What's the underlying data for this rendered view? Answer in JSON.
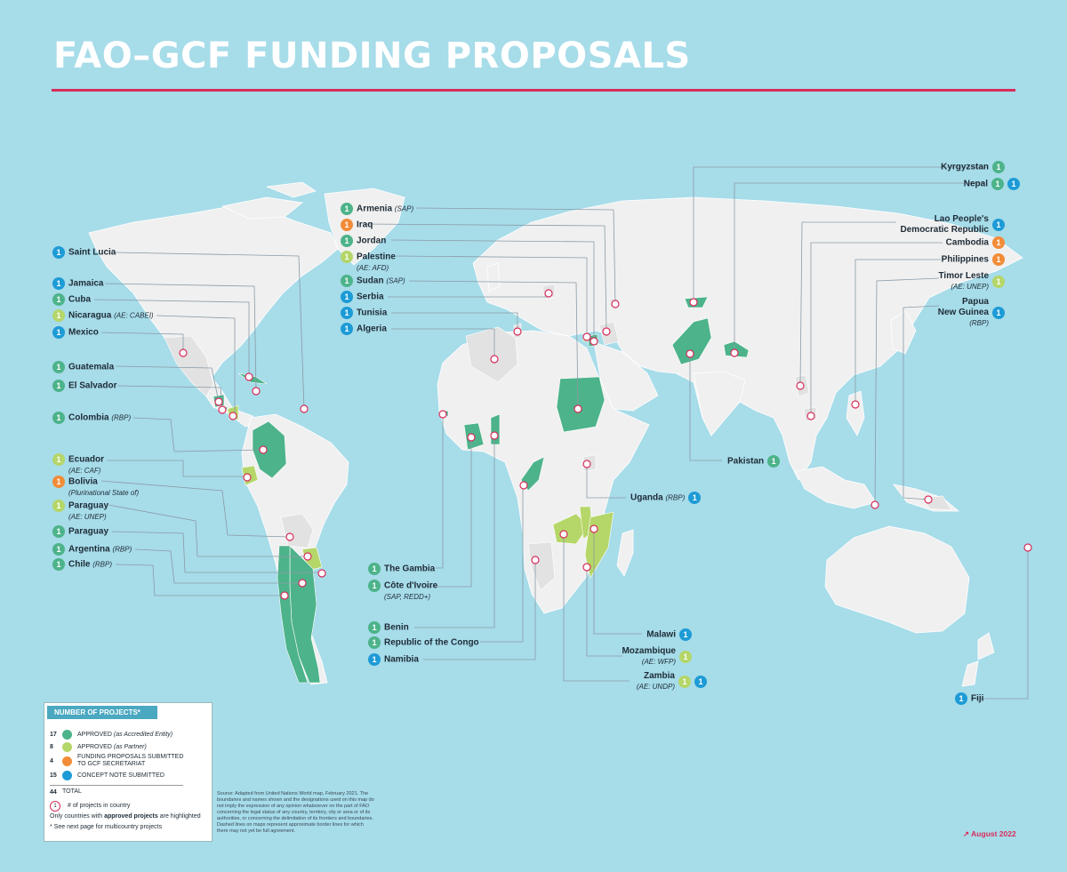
{
  "title": "FAO–GCF FUNDING PROPOSALS",
  "date": "August 2022",
  "colors": {
    "ocean": "#a7dce9",
    "land": "#f0f0f0",
    "accredited": "#4db38a",
    "partner": "#b5d669",
    "submitted": "#f28c38",
    "concept": "#1d9bd6",
    "accent": "#d72d5a"
  },
  "labels": [
    {
      "id": "saint-lucia",
      "name": "Saint Lucia",
      "note": "",
      "sub": "",
      "badges": [
        {
          "n": "1",
          "type": "concept"
        }
      ]
    },
    {
      "id": "jamaica",
      "name": "Jamaica",
      "note": "",
      "sub": "",
      "badges": [
        {
          "n": "1",
          "type": "concept"
        }
      ]
    },
    {
      "id": "cuba",
      "name": "Cuba",
      "note": "",
      "sub": "",
      "badges": [
        {
          "n": "1",
          "type": "accredited"
        }
      ]
    },
    {
      "id": "nicaragua",
      "name": "Nicaragua",
      "note": "(AE: CABEI)",
      "sub": "",
      "badges": [
        {
          "n": "1",
          "type": "partner"
        }
      ]
    },
    {
      "id": "mexico",
      "name": "Mexico",
      "note": "",
      "sub": "",
      "badges": [
        {
          "n": "1",
          "type": "concept"
        }
      ]
    },
    {
      "id": "guatemala",
      "name": "Guatemala",
      "note": "",
      "sub": "",
      "badges": [
        {
          "n": "1",
          "type": "accredited"
        }
      ]
    },
    {
      "id": "el-salvador",
      "name": "El Salvador",
      "note": "",
      "sub": "",
      "badges": [
        {
          "n": "1",
          "type": "accredited"
        }
      ]
    },
    {
      "id": "colombia",
      "name": "Colombia",
      "note": "(RBP)",
      "sub": "",
      "badges": [
        {
          "n": "1",
          "type": "accredited"
        }
      ]
    },
    {
      "id": "ecuador",
      "name": "Ecuador",
      "note": "",
      "sub": "(AE: CAF)",
      "badges": [
        {
          "n": "1",
          "type": "partner"
        }
      ]
    },
    {
      "id": "bolivia",
      "name": "Bolivia",
      "note": "",
      "sub": "(Plurinational State of)",
      "badges": [
        {
          "n": "1",
          "type": "submitted"
        }
      ]
    },
    {
      "id": "paraguay-unep",
      "name": "Paraguay",
      "note": "",
      "sub": "(AE: UNEP)",
      "badges": [
        {
          "n": "1",
          "type": "partner"
        }
      ]
    },
    {
      "id": "paraguay",
      "name": "Paraguay",
      "note": "",
      "sub": "",
      "badges": [
        {
          "n": "1",
          "type": "accredited"
        }
      ]
    },
    {
      "id": "argentina",
      "name": "Argentina",
      "note": "(RBP)",
      "sub": "",
      "badges": [
        {
          "n": "1",
          "type": "accredited"
        }
      ]
    },
    {
      "id": "chile",
      "name": "Chile",
      "note": "(RBP)",
      "sub": "",
      "badges": [
        {
          "n": "1",
          "type": "accredited"
        }
      ]
    },
    {
      "id": "armenia",
      "name": "Armenia",
      "note": "(SAP)",
      "sub": "",
      "badges": [
        {
          "n": "1",
          "type": "accredited"
        }
      ]
    },
    {
      "id": "iraq",
      "name": "Iraq",
      "note": "",
      "sub": "",
      "badges": [
        {
          "n": "1",
          "type": "submitted"
        }
      ]
    },
    {
      "id": "jordan",
      "name": "Jordan",
      "note": "",
      "sub": "",
      "badges": [
        {
          "n": "1",
          "type": "accredited"
        }
      ]
    },
    {
      "id": "palestine",
      "name": "Palestine",
      "note": "",
      "sub": "(AE: AFD)",
      "badges": [
        {
          "n": "1",
          "type": "partner"
        }
      ]
    },
    {
      "id": "sudan",
      "name": "Sudan",
      "note": "(SAP)",
      "sub": "",
      "badges": [
        {
          "n": "1",
          "type": "accredited"
        }
      ]
    },
    {
      "id": "serbia",
      "name": "Serbia",
      "note": "",
      "sub": "",
      "badges": [
        {
          "n": "1",
          "type": "concept"
        }
      ]
    },
    {
      "id": "tunisia",
      "name": "Tunisia",
      "note": "",
      "sub": "",
      "badges": [
        {
          "n": "1",
          "type": "concept"
        }
      ]
    },
    {
      "id": "algeria",
      "name": "Algeria",
      "note": "",
      "sub": "",
      "badges": [
        {
          "n": "1",
          "type": "concept"
        }
      ]
    },
    {
      "id": "the-gambia",
      "name": "The Gambia",
      "note": "",
      "sub": "",
      "badges": [
        {
          "n": "1",
          "type": "accredited"
        }
      ]
    },
    {
      "id": "cote-divoire",
      "name": "Côte d'Ivoire",
      "note": "",
      "sub": "(SAP, REDD+)",
      "badges": [
        {
          "n": "1",
          "type": "accredited"
        }
      ]
    },
    {
      "id": "benin",
      "name": "Benin",
      "note": "",
      "sub": "",
      "badges": [
        {
          "n": "1",
          "type": "accredited"
        }
      ]
    },
    {
      "id": "congo",
      "name": "Republic of the Congo",
      "note": "",
      "sub": "",
      "badges": [
        {
          "n": "1",
          "type": "accredited"
        }
      ]
    },
    {
      "id": "namibia",
      "name": "Namibia",
      "note": "",
      "sub": "",
      "badges": [
        {
          "n": "1",
          "type": "concept"
        }
      ]
    },
    {
      "id": "kyrgyzstan",
      "name": "Kyrgyzstan",
      "note": "",
      "sub": "",
      "badges": [
        {
          "n": "1",
          "type": "accredited"
        }
      ]
    },
    {
      "id": "nepal",
      "name": "Nepal",
      "note": "",
      "sub": "",
      "badges": [
        {
          "n": "1",
          "type": "accredited"
        },
        {
          "n": "1",
          "type": "concept"
        }
      ]
    },
    {
      "id": "lao",
      "name": "Lao People's",
      "note": "",
      "sub": "Democratic Republic",
      "badges": [
        {
          "n": "1",
          "type": "concept"
        }
      ]
    },
    {
      "id": "cambodia",
      "name": "Cambodia",
      "note": "",
      "sub": "",
      "badges": [
        {
          "n": "1",
          "type": "submitted"
        }
      ]
    },
    {
      "id": "philippines",
      "name": "Philippines",
      "note": "",
      "sub": "",
      "badges": [
        {
          "n": "1",
          "type": "submitted"
        }
      ]
    },
    {
      "id": "timor-leste",
      "name": "Timor Leste",
      "note": "",
      "sub": "(AE: UNEP)",
      "badges": [
        {
          "n": "1",
          "type": "partner"
        }
      ]
    },
    {
      "id": "png",
      "name": "Papua",
      "note": "",
      "sub": "New Guinea",
      "sub2": "(RBP)",
      "badges": [
        {
          "n": "1",
          "type": "concept"
        }
      ]
    },
    {
      "id": "pakistan",
      "name": "Pakistan",
      "note": "",
      "sub": "",
      "badges": [
        {
          "n": "1",
          "type": "accredited"
        }
      ]
    },
    {
      "id": "uganda",
      "name": "Uganda",
      "note": "(RBP)",
      "sub": "",
      "badges": [
        {
          "n": "1",
          "type": "concept"
        }
      ]
    },
    {
      "id": "malawi",
      "name": "Malawi",
      "note": "",
      "sub": "",
      "badges": [
        {
          "n": "1",
          "type": "concept"
        }
      ]
    },
    {
      "id": "mozambique",
      "name": "Mozambique",
      "note": "",
      "sub": "(AE: WFP)",
      "badges": [
        {
          "n": "1",
          "type": "partner"
        }
      ]
    },
    {
      "id": "zambia",
      "name": "Zambia",
      "note": "",
      "sub": "(AE: UNDP)",
      "badges": [
        {
          "n": "1",
          "type": "partner"
        },
        {
          "n": "1",
          "type": "concept"
        }
      ]
    },
    {
      "id": "fiji",
      "name": "Fiji",
      "note": "",
      "sub": "",
      "badges": [
        {
          "n": "1",
          "type": "concept"
        }
      ]
    }
  ],
  "legend": {
    "title": "NUMBER OF PROJECTS*",
    "rows": [
      {
        "count": "17",
        "type": "accredited",
        "text": "APPROVED",
        "note": "(as Accredited Entity)"
      },
      {
        "count": "8",
        "type": "partner",
        "text": "APPROVED",
        "note": "(as Partner)"
      },
      {
        "count": "4",
        "type": "submitted",
        "text": "FUNDING PROPOSALS SUBMITTED",
        "text2": "TO GCF SECRETARIAT",
        "note": ""
      },
      {
        "count": "15",
        "type": "concept",
        "text": "CONCEPT NOTE SUBMITTED",
        "note": ""
      }
    ],
    "total_count": "44",
    "total_label": "TOTAL",
    "marker_text": "# of projects in country",
    "marker_n": "1",
    "highlight_prefix": "Only countries with ",
    "highlight_bold": "approved projects",
    "highlight_suffix": " are highlighted",
    "footnote": "* See next page for multicountry projects"
  },
  "source": "Source: Adapted from United Nations World map, February 2021. The boundaries and names shown and the designations used on this map do not imply the expression of any opinion whatsoever on the part of FAO concerning the legal status of any country, territory, city or area or of its authorities, or concerning the delimitation of its frontiers and boundaries. Dashed lines on maps represent approximate border lines for which there may not yet be full agreement."
}
